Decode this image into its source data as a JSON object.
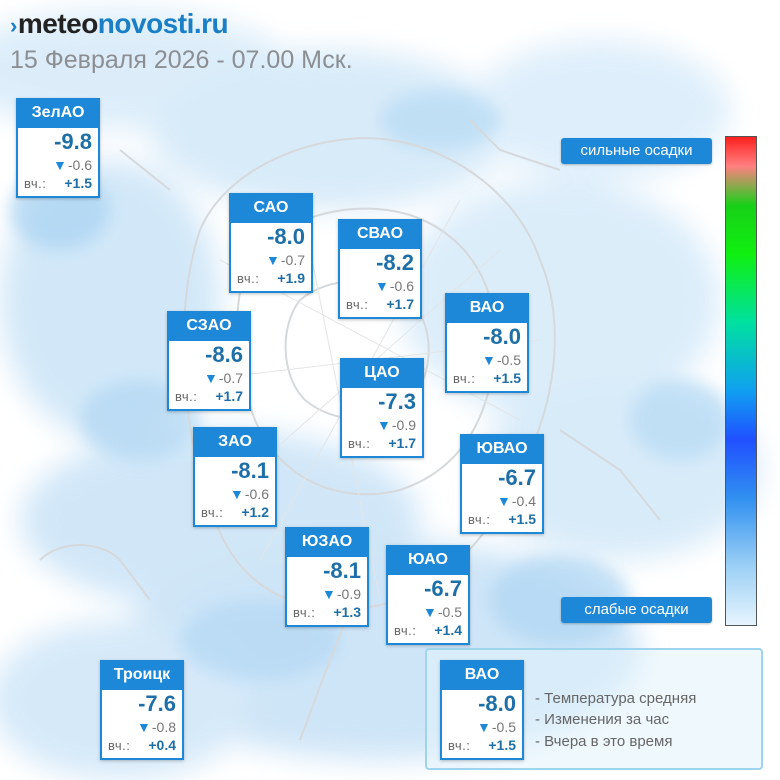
{
  "site": {
    "logo_part1": "meteo",
    "logo_part2": "novosti.ru",
    "logo_mark": "›"
  },
  "subtitle": "15 Февраля 2026 - 07.00 Мск.",
  "districts": [
    {
      "name": "ЗелАО",
      "temp": "-9.8",
      "change": "-0.6",
      "yesterday_label": "вч.:",
      "yesterday": "+1.5"
    },
    {
      "name": "САО",
      "temp": "-8.0",
      "change": "-0.7",
      "yesterday_label": "вч.:",
      "yesterday": "+1.9"
    },
    {
      "name": "СВАО",
      "temp": "-8.2",
      "change": "-0.6",
      "yesterday_label": "вч.:",
      "yesterday": "+1.7"
    },
    {
      "name": "СЗАО",
      "temp": "-8.6",
      "change": "-0.7",
      "yesterday_label": "вч.:",
      "yesterday": "+1.7"
    },
    {
      "name": "ВАО",
      "temp": "-8.0",
      "change": "-0.5",
      "yesterday_label": "вч.:",
      "yesterday": "+1.5"
    },
    {
      "name": "ЦАО",
      "temp": "-7.3",
      "change": "-0.9",
      "yesterday_label": "вч.:",
      "yesterday": "+1.7"
    },
    {
      "name": "ЗАО",
      "temp": "-8.1",
      "change": "-0.6",
      "yesterday_label": "вч.:",
      "yesterday": "+1.2"
    },
    {
      "name": "ЮВАО",
      "temp": "-6.7",
      "change": "-0.4",
      "yesterday_label": "вч.:",
      "yesterday": "+1.5"
    },
    {
      "name": "ЮЗАО",
      "temp": "-8.1",
      "change": "-0.9",
      "yesterday_label": "вч.:",
      "yesterday": "+1.3"
    },
    {
      "name": "ЮАО",
      "temp": "-6.7",
      "change": "-0.5",
      "yesterday_label": "вч.:",
      "yesterday": "+1.4"
    },
    {
      "name": "Троицк",
      "temp": "-7.6",
      "change": "-0.8",
      "yesterday_label": "вч.:",
      "yesterday": "+0.4"
    }
  ],
  "precip_scale": {
    "strong_label": "сильные осадки",
    "weak_label": "слабые осадки"
  },
  "legend": {
    "sample": {
      "name": "ВАО",
      "temp": "-8.0",
      "change": "-0.5",
      "yesterday_label": "вч.:",
      "yesterday": "+1.5"
    },
    "lines": [
      "- Температура средняя",
      "- Изменения за час",
      "- Вчера в это время"
    ]
  },
  "colors": {
    "accent": "#1e88d8",
    "temp_text": "#1e6fa8",
    "precip_light": "#cfe6f8",
    "precip_mid": "#a9d3f2"
  },
  "icons": {
    "change_indicator": "triangle-down-icon"
  }
}
